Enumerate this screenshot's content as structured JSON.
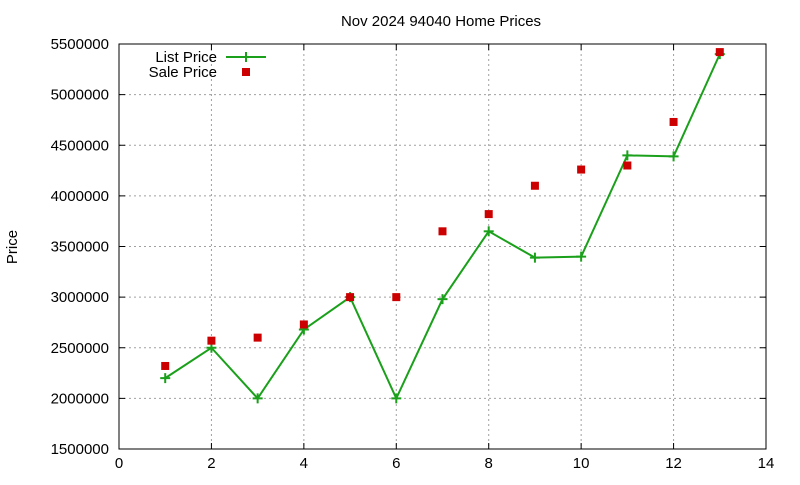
{
  "chart_data": {
    "type": "line",
    "title": "Nov 2024 94040 Home Prices",
    "xlabel": "",
    "ylabel": "Price",
    "xlim": [
      0,
      14
    ],
    "ylim": [
      1500000,
      5500000
    ],
    "xticks": [
      0,
      2,
      4,
      6,
      8,
      10,
      12,
      14
    ],
    "yticks": [
      1500000,
      2000000,
      2500000,
      3000000,
      3500000,
      4000000,
      4500000,
      5000000,
      5500000
    ],
    "grid": true,
    "legend_position": "top-left",
    "series": [
      {
        "name": "List Price",
        "style": "line-with-plus-markers",
        "color": "#1aa01a",
        "x": [
          1,
          2,
          3,
          4,
          5,
          6,
          7,
          8,
          9,
          10,
          11,
          12,
          13
        ],
        "values": [
          2200000,
          2500000,
          2000000,
          2680000,
          3000000,
          2000000,
          2980000,
          3650000,
          3390000,
          3400000,
          4400000,
          4390000,
          5400000
        ]
      },
      {
        "name": "Sale Price",
        "style": "square-markers",
        "color": "#cc0000",
        "x": [
          1,
          2,
          3,
          4,
          5,
          6,
          7,
          8,
          9,
          10,
          11,
          12,
          13
        ],
        "values": [
          2320000,
          2570000,
          2600000,
          2730000,
          3000000,
          3000000,
          3650000,
          3820000,
          4100000,
          4260000,
          4300000,
          4730000,
          5420000
        ]
      }
    ]
  }
}
